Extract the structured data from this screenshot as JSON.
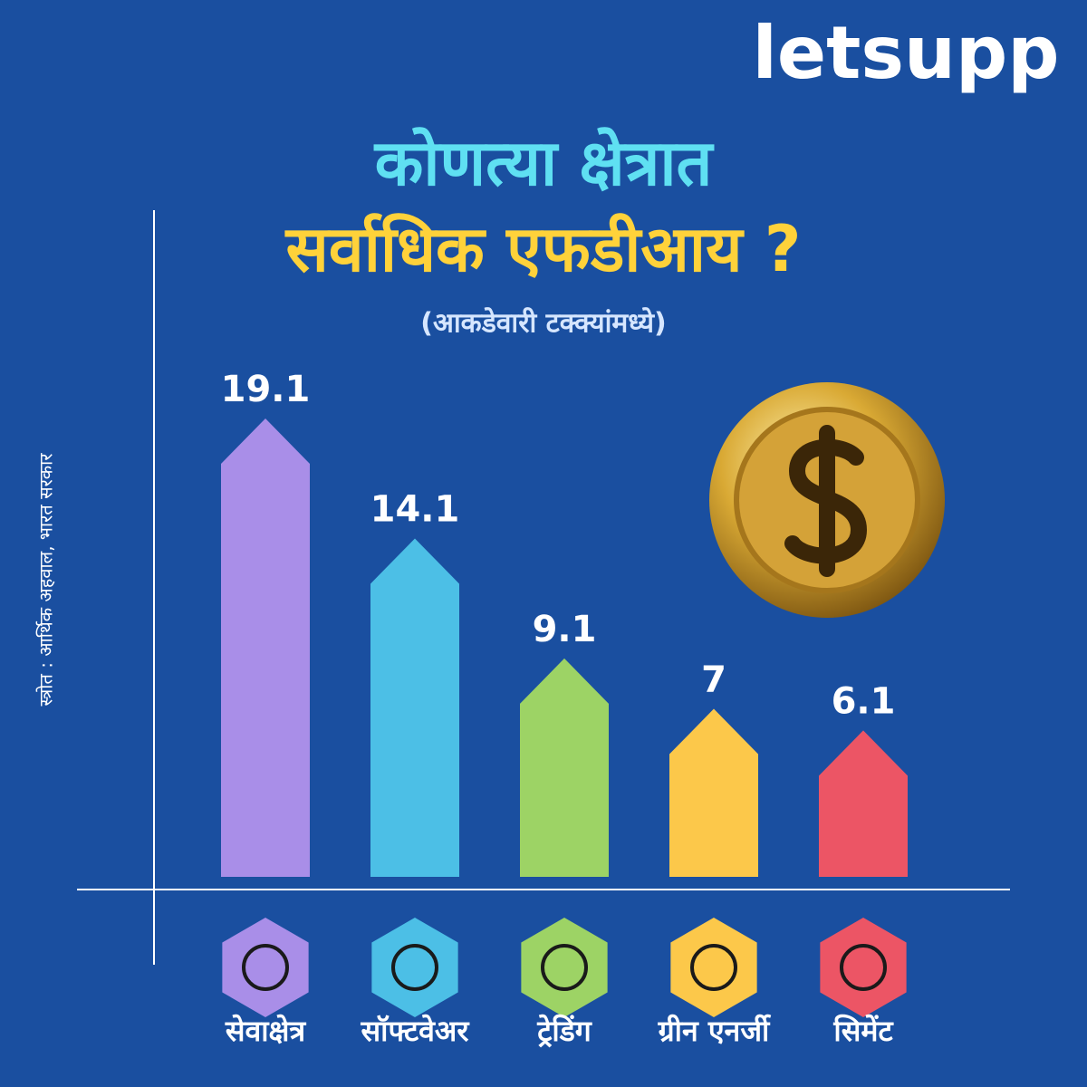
{
  "logo": "letsupp",
  "chart_data": {
    "type": "bar",
    "title": [
      "कोणत्या क्षेत्रात",
      "सर्वाधिक एफडीआय ?"
    ],
    "subtitle": "(आकडेवारी टक्क्यांमध्ये)",
    "source": "स्त्रोत : आर्थिक अहवाल, भारत सरकार",
    "categories": [
      "सेवाक्षेत्र",
      "सॉफ्टवेअर",
      "ट्रेडिंग",
      "ग्रीन एनर्जी",
      "सिमेंट"
    ],
    "values": [
      19.1,
      14.1,
      9.1,
      7,
      6.1
    ],
    "colors": [
      "#a98ee8",
      "#4cbfe6",
      "#9dd365",
      "#fcc84a",
      "#ec5565"
    ]
  }
}
